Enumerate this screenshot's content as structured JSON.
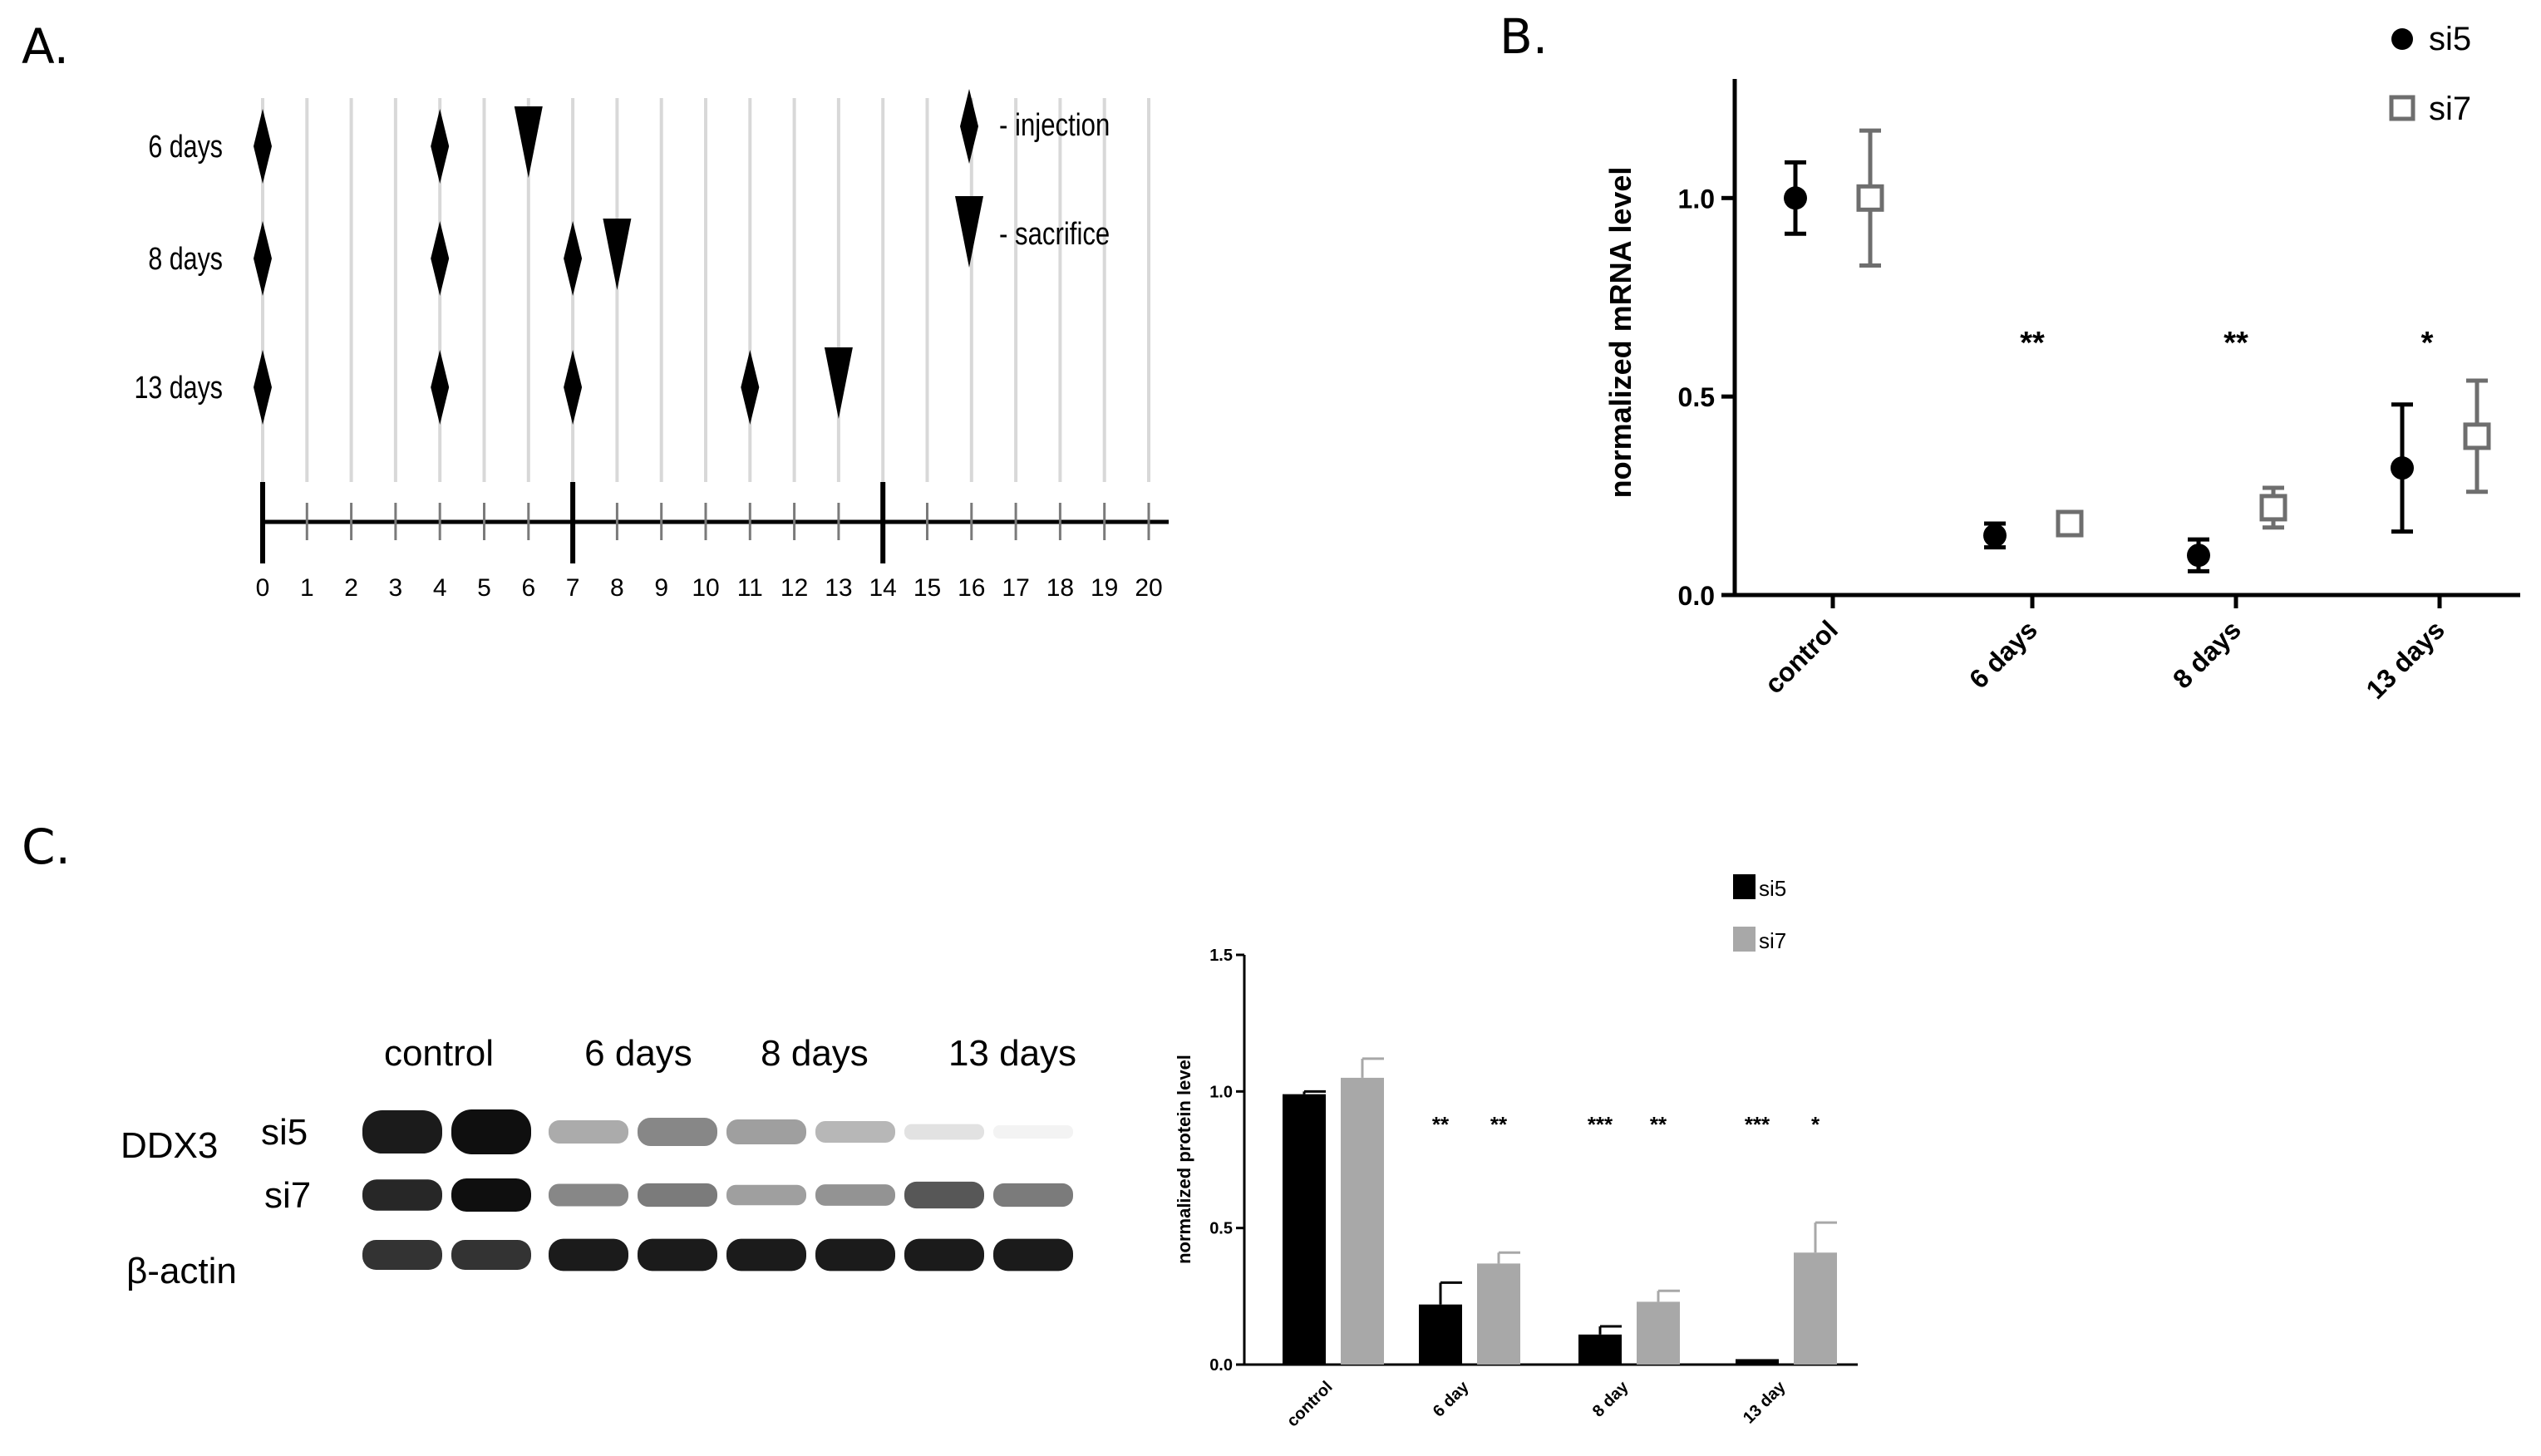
{
  "panels": {
    "a": {
      "letter": "A.",
      "groups": [
        {
          "label": "6 days",
          "injections": [
            0,
            4
          ],
          "sacrifice": 6
        },
        {
          "label": "8 days",
          "injections": [
            0,
            4,
            7
          ],
          "sacrifice": 8
        },
        {
          "label": "13 days",
          "injections": [
            0,
            4,
            7,
            11
          ],
          "sacrifice": 13
        }
      ],
      "major_ticks": [
        0,
        7,
        14
      ],
      "day_range": [
        0,
        20
      ],
      "legend": {
        "injection": "- injection",
        "sacrifice": "- sacrifice"
      }
    },
    "b": {
      "letter": "B."
    },
    "c": {
      "letter": "C."
    }
  },
  "blot": {
    "headers": [
      "control",
      "6 days",
      "8 days",
      "13 days"
    ],
    "rows": [
      {
        "label": "si5",
        "intensity": [
          0.95,
          1.0,
          0.35,
          0.5,
          0.4,
          0.3,
          0.12,
          0.05
        ]
      },
      {
        "label": "si7",
        "intensity": [
          0.9,
          1.0,
          0.5,
          0.55,
          0.4,
          0.45,
          0.7,
          0.55
        ]
      },
      {
        "label": "β-actin",
        "intensity": [
          0.85,
          0.85,
          0.95,
          0.95,
          0.95,
          0.95,
          0.95,
          0.95
        ]
      }
    ],
    "protein_label": "DDX3"
  },
  "chart_data": [
    {
      "type": "scatter",
      "title": "",
      "xlabel": "",
      "ylabel": "normalized mRNA level",
      "categories": [
        "control",
        "6 days",
        "8 days",
        "13 days"
      ],
      "ylim": [
        0,
        1.3
      ],
      "yticks": [
        "0.0",
        "0.5",
        "1.0"
      ],
      "series": [
        {
          "name": "si5",
          "values": [
            1.0,
            0.15,
            0.1,
            0.32
          ],
          "errors": [
            0.09,
            0.03,
            0.04,
            0.16
          ]
        },
        {
          "name": "si7",
          "values": [
            1.0,
            0.18,
            0.22,
            0.4
          ],
          "errors": [
            0.17,
            0.02,
            0.05,
            0.14
          ]
        }
      ],
      "annotations": [
        "",
        "**",
        "**",
        "*"
      ],
      "colors": {
        "si5": "#000000",
        "si7": "#6e6e6e"
      }
    },
    {
      "type": "bar",
      "title": "",
      "xlabel": "",
      "ylabel": "normalized protein level",
      "categories": [
        "control",
        "6 day",
        "8 day",
        "13 day"
      ],
      "ylim": [
        0,
        1.5
      ],
      "yticks": [
        "0.0",
        "0.5",
        "1.0",
        "1.5"
      ],
      "series": [
        {
          "name": "si5",
          "values": [
            0.99,
            0.22,
            0.11,
            0.02
          ],
          "errors": [
            0.01,
            0.08,
            0.03,
            0.0
          ]
        },
        {
          "name": "si7",
          "values": [
            1.05,
            0.37,
            0.23,
            0.41
          ],
          "errors": [
            0.07,
            0.04,
            0.04,
            0.11
          ]
        }
      ],
      "annotations": [
        [
          "",
          ""
        ],
        [
          "**",
          "**"
        ],
        [
          "***",
          "**"
        ],
        [
          "***",
          "*"
        ]
      ],
      "colors": {
        "si5": "#000000",
        "si7": "#a8a8a8"
      }
    }
  ]
}
